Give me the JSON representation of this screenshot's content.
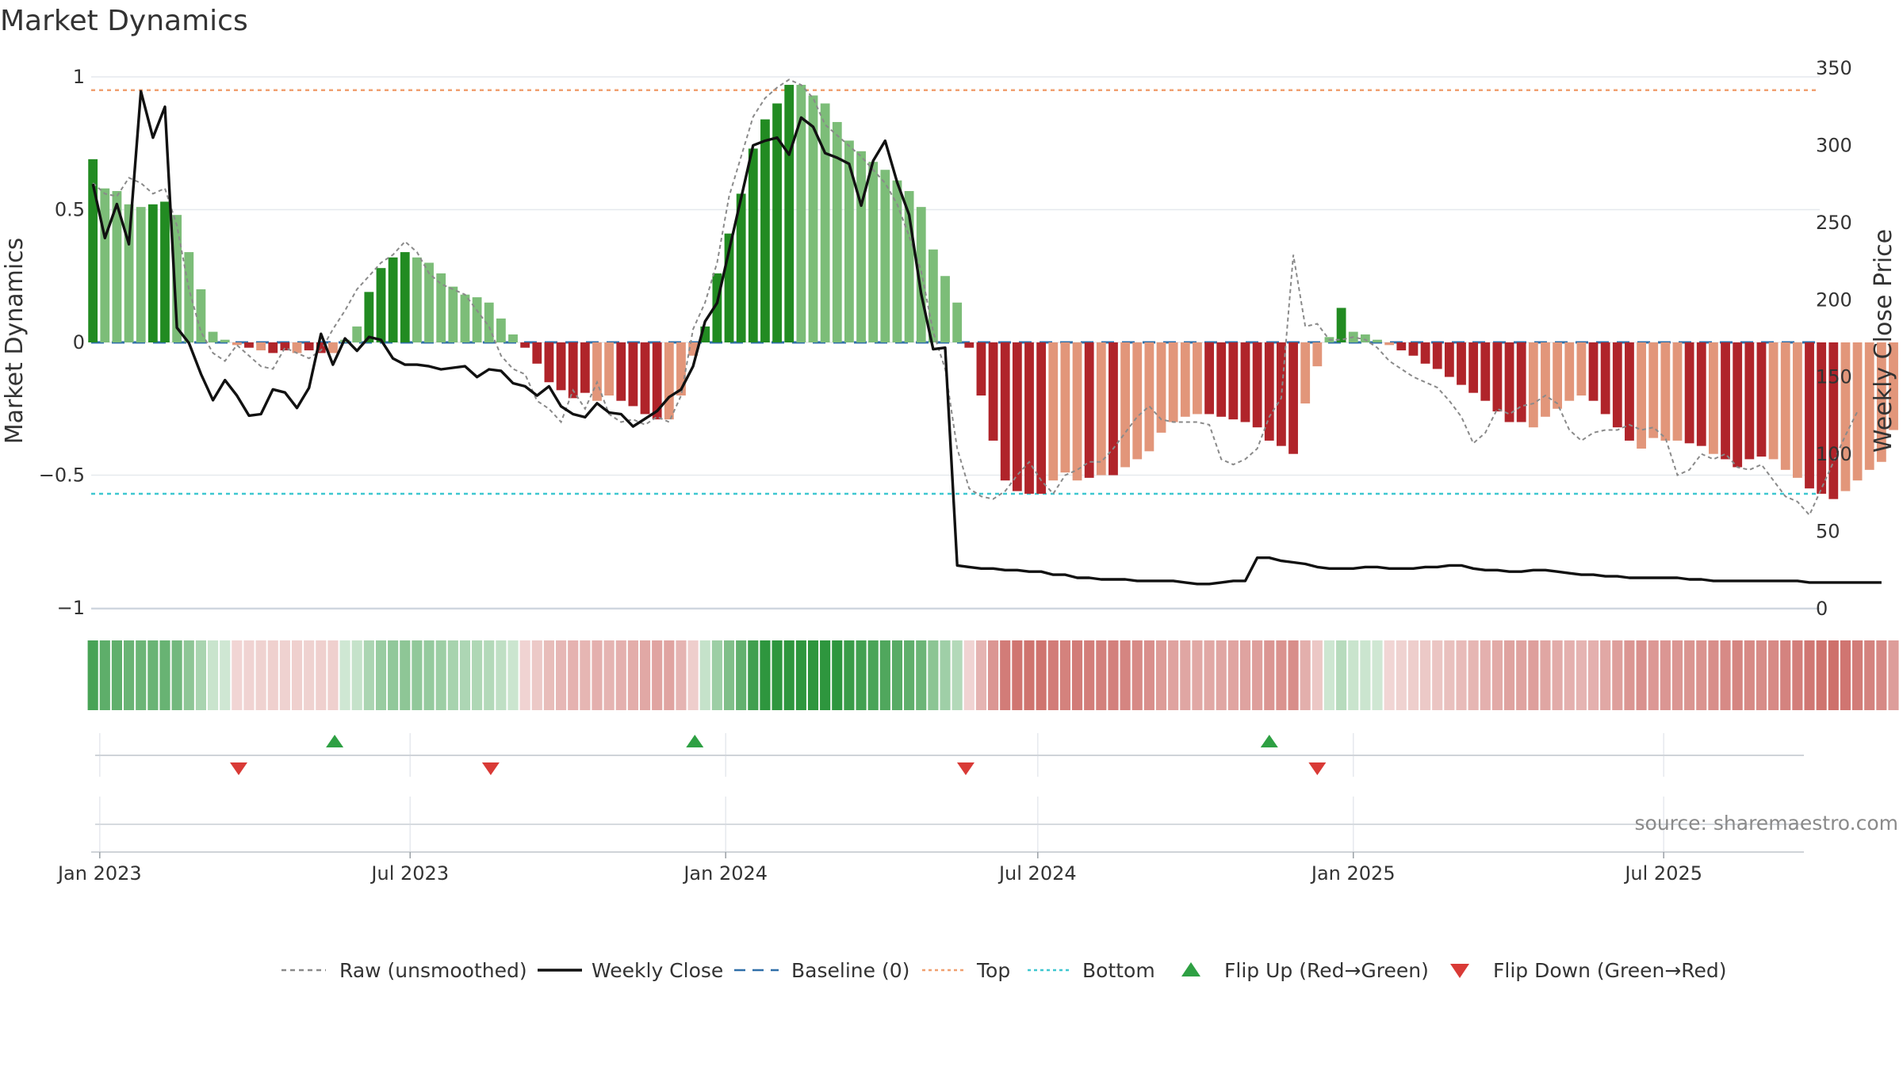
{
  "chart_data": {
    "type": "bar",
    "title": "Market Dynamics",
    "y_left_label": "Market Dynamics",
    "y_right_label": "Weekly Close Price",
    "y_left_range": [
      -1,
      1
    ],
    "y_right_range": [
      0,
      350
    ],
    "y_left_ticks": [
      1,
      0.5,
      0,
      -0.5,
      -1
    ],
    "y_left_tick_labels": [
      "1",
      "0.5",
      "0",
      "−0.5",
      "−1"
    ],
    "y_right_ticks": [
      350,
      300,
      250,
      200,
      150,
      100,
      50,
      0
    ],
    "x_tick_labels": [
      "Jan 2023",
      "Jul 2023",
      "Jan 2024",
      "Jul 2024",
      "Jan 2025",
      "Jul 2025"
    ],
    "x_tick_dates": [
      "2023-01-01",
      "2023-07-01",
      "2024-01-01",
      "2024-07-01",
      "2025-01-01",
      "2025-07-01"
    ],
    "x_range": [
      "2022-12-27",
      "2025-09-30"
    ],
    "reference_lines": {
      "top": 0.95,
      "bottom": -0.57,
      "baseline": 0
    },
    "series": [
      {
        "name": "Market Dynamics",
        "start_date": "2022-12-28",
        "step_days": 7,
        "values": [
          0.69,
          0.58,
          0.57,
          0.52,
          0.51,
          0.52,
          0.53,
          0.48,
          0.34,
          0.2,
          0.04,
          0.01,
          -0.01,
          -0.02,
          -0.03,
          -0.04,
          -0.03,
          -0.04,
          -0.03,
          -0.04,
          -0.04,
          0.01,
          0.06,
          0.19,
          0.28,
          0.32,
          0.34,
          0.32,
          0.3,
          0.26,
          0.21,
          0.18,
          0.17,
          0.15,
          0.09,
          0.03,
          -0.02,
          -0.08,
          -0.15,
          -0.18,
          -0.21,
          -0.19,
          -0.22,
          -0.2,
          -0.22,
          -0.24,
          -0.27,
          -0.29,
          -0.29,
          -0.2,
          -0.05,
          0.06,
          0.26,
          0.41,
          0.56,
          0.73,
          0.84,
          0.9,
          0.97,
          0.97,
          0.93,
          0.9,
          0.83,
          0.76,
          0.72,
          0.68,
          0.65,
          0.61,
          0.57,
          0.51,
          0.35,
          0.25,
          0.15,
          -0.02,
          -0.2,
          -0.37,
          -0.52,
          -0.56,
          -0.57,
          -0.57,
          -0.52,
          -0.49,
          -0.52,
          -0.51,
          -0.5,
          -0.5,
          -0.47,
          -0.44,
          -0.41,
          -0.34,
          -0.3,
          -0.28,
          -0.27,
          -0.27,
          -0.28,
          -0.29,
          -0.3,
          -0.32,
          -0.37,
          -0.39,
          -0.42,
          -0.23,
          -0.09,
          0.02,
          0.13,
          0.04,
          0.03,
          0.01,
          -0.01,
          -0.03,
          -0.05,
          -0.08,
          -0.1,
          -0.13,
          -0.16,
          -0.19,
          -0.22,
          -0.26,
          -0.3,
          -0.3,
          -0.32,
          -0.28,
          -0.25,
          -0.22,
          -0.2,
          -0.22,
          -0.27,
          -0.32,
          -0.37,
          -0.4,
          -0.36,
          -0.37,
          -0.37,
          -0.38,
          -0.39,
          -0.42,
          -0.44,
          -0.47,
          -0.44,
          -0.43,
          -0.44,
          -0.48,
          -0.51,
          -0.55,
          -0.57,
          -0.59,
          -0.56,
          -0.52,
          -0.48,
          -0.45,
          -0.33
        ],
        "intensity": [
          1,
          0,
          0,
          0,
          0,
          1,
          1,
          0,
          0,
          0,
          0,
          0,
          0,
          1,
          0,
          1,
          1,
          0,
          1,
          1,
          0,
          0,
          0,
          1,
          1,
          1,
          1,
          0,
          0,
          0,
          0,
          0,
          0,
          0,
          0,
          0,
          1,
          1,
          1,
          1,
          1,
          1,
          0,
          0,
          1,
          1,
          1,
          1,
          0,
          0,
          0,
          1,
          1,
          1,
          1,
          1,
          1,
          1,
          1,
          0,
          0,
          0,
          0,
          0,
          0,
          0,
          0,
          0,
          0,
          0,
          0,
          0,
          0,
          1,
          1,
          1,
          1,
          1,
          1,
          1,
          0,
          0,
          0,
          1,
          0,
          1,
          0,
          0,
          0,
          0,
          0,
          0,
          0,
          1,
          1,
          1,
          1,
          1,
          1,
          1,
          1,
          0,
          0,
          0,
          1,
          0,
          0,
          0,
          0,
          1,
          1,
          1,
          1,
          1,
          1,
          1,
          1,
          1,
          1,
          1,
          0,
          0,
          0,
          0,
          0,
          1,
          1,
          1,
          1,
          0,
          0,
          0,
          0,
          1,
          1,
          0,
          1,
          1,
          1,
          1,
          0,
          0,
          0,
          1,
          1,
          1,
          0,
          0,
          0,
          0
        ]
      },
      {
        "name": "Raw (unsmoothed)",
        "style": "dashed gray",
        "values": [
          0.6,
          0.56,
          0.55,
          0.62,
          0.6,
          0.56,
          0.58,
          0.44,
          0.2,
          0.04,
          -0.04,
          -0.07,
          -0.01,
          -0.05,
          -0.09,
          -0.1,
          -0.02,
          -0.04,
          -0.06,
          -0.03,
          0.05,
          0.12,
          0.2,
          0.25,
          0.3,
          0.33,
          0.38,
          0.34,
          0.26,
          0.22,
          0.2,
          0.18,
          0.12,
          0.06,
          -0.05,
          -0.1,
          -0.12,
          -0.22,
          -0.25,
          -0.3,
          -0.18,
          -0.25,
          -0.15,
          -0.27,
          -0.3,
          -0.29,
          -0.31,
          -0.28,
          -0.3,
          -0.2,
          0.05,
          0.15,
          0.3,
          0.55,
          0.7,
          0.85,
          0.92,
          0.96,
          0.99,
          0.97,
          0.92,
          0.82,
          0.78,
          0.74,
          0.7,
          0.65,
          0.6,
          0.52,
          0.4,
          0.27,
          0.04,
          -0.1,
          -0.4,
          -0.55,
          -0.58,
          -0.59,
          -0.56,
          -0.5,
          -0.45,
          -0.52,
          -0.57,
          -0.5,
          -0.48,
          -0.45,
          -0.45,
          -0.4,
          -0.34,
          -0.28,
          -0.24,
          -0.29,
          -0.3,
          -0.3,
          -0.3,
          -0.31,
          -0.44,
          -0.46,
          -0.44,
          -0.4,
          -0.28,
          -0.21,
          0.33,
          0.06,
          0.07,
          0.01,
          0.01,
          0.02,
          0.01,
          -0.02,
          -0.07,
          -0.1,
          -0.13,
          -0.15,
          -0.17,
          -0.22,
          -0.28,
          -0.38,
          -0.34,
          -0.25,
          -0.27,
          -0.24,
          -0.23,
          -0.2,
          -0.23,
          -0.33,
          -0.37,
          -0.34,
          -0.33,
          -0.33,
          -0.31,
          -0.33,
          -0.32,
          -0.36,
          -0.5,
          -0.48,
          -0.42,
          -0.44,
          -0.42,
          -0.47,
          -0.48,
          -0.46,
          -0.52,
          -0.58,
          -0.6,
          -0.65,
          -0.55,
          -0.45,
          -0.35,
          -0.26
        ]
      },
      {
        "name": "Weekly Close",
        "axis": "right",
        "style": "solid black",
        "values": [
          275,
          240,
          262,
          236,
          335,
          305,
          325,
          182,
          172,
          152,
          135,
          148,
          138,
          125,
          126,
          142,
          140,
          130,
          143,
          178,
          158,
          175,
          167,
          176,
          174,
          162,
          158,
          158,
          157,
          155,
          156,
          157,
          150,
          155,
          154,
          146,
          144,
          138,
          144,
          131,
          126,
          124,
          133,
          127,
          126,
          118,
          123,
          128,
          137,
          142,
          157,
          186,
          198,
          232,
          266,
          300,
          303,
          305,
          294,
          318,
          312,
          295,
          292,
          288,
          261,
          290,
          303,
          276,
          255,
          204,
          168,
          169,
          28,
          27,
          26,
          26,
          25,
          25,
          24,
          24,
          22,
          22,
          20,
          20,
          19,
          19,
          19,
          18,
          18,
          18,
          18,
          17,
          16,
          16,
          17,
          18,
          18,
          33,
          33,
          31,
          30,
          29,
          27,
          26,
          26,
          26,
          27,
          27,
          26,
          26,
          26,
          27,
          27,
          28,
          28,
          26,
          25,
          25,
          24,
          24,
          25,
          25,
          24,
          23,
          22,
          22,
          21,
          21,
          20,
          20,
          20,
          20,
          20,
          19,
          19,
          18,
          18,
          18,
          18,
          18,
          18,
          18,
          18,
          17,
          17,
          17,
          17,
          17,
          17,
          17
        ]
      }
    ],
    "flip_up_dates": [
      "2023-05-18",
      "2023-12-14",
      "2024-11-13"
    ],
    "flip_down_dates": [
      "2023-03-23",
      "2023-08-17",
      "2024-05-20",
      "2024-12-11"
    ],
    "legend": {
      "position": "bottom",
      "entries": [
        {
          "label": "Raw (unsmoothed)",
          "style": "dashed",
          "color": "#8a8a8a"
        },
        {
          "label": "Weekly Close",
          "style": "solid",
          "color": "#111111"
        },
        {
          "label": "Baseline (0)",
          "style": "dashed",
          "color": "#2f6fa8"
        },
        {
          "label": "Top",
          "style": "dotted",
          "color": "#f0a070"
        },
        {
          "label": "Bottom",
          "style": "dotted",
          "color": "#3fc7d0"
        },
        {
          "label": "Flip Up (Red→Green)",
          "style": "triangle-up",
          "color": "#2ea043"
        },
        {
          "label": "Flip Down (Green→Red)",
          "style": "triangle-down",
          "color": "#d93a36"
        }
      ]
    },
    "source": "source: sharemaestro.com",
    "colors": {
      "green_strong": "#228b22",
      "green_light": "#7cbd78",
      "red_strong": "#b0242a",
      "red_light": "#e2967a",
      "top_line": "#f0a070",
      "bottom_line": "#3fc7d0",
      "baseline": "#2f6fa8",
      "flip_up": "#2ea043",
      "flip_down": "#d93a36"
    }
  }
}
